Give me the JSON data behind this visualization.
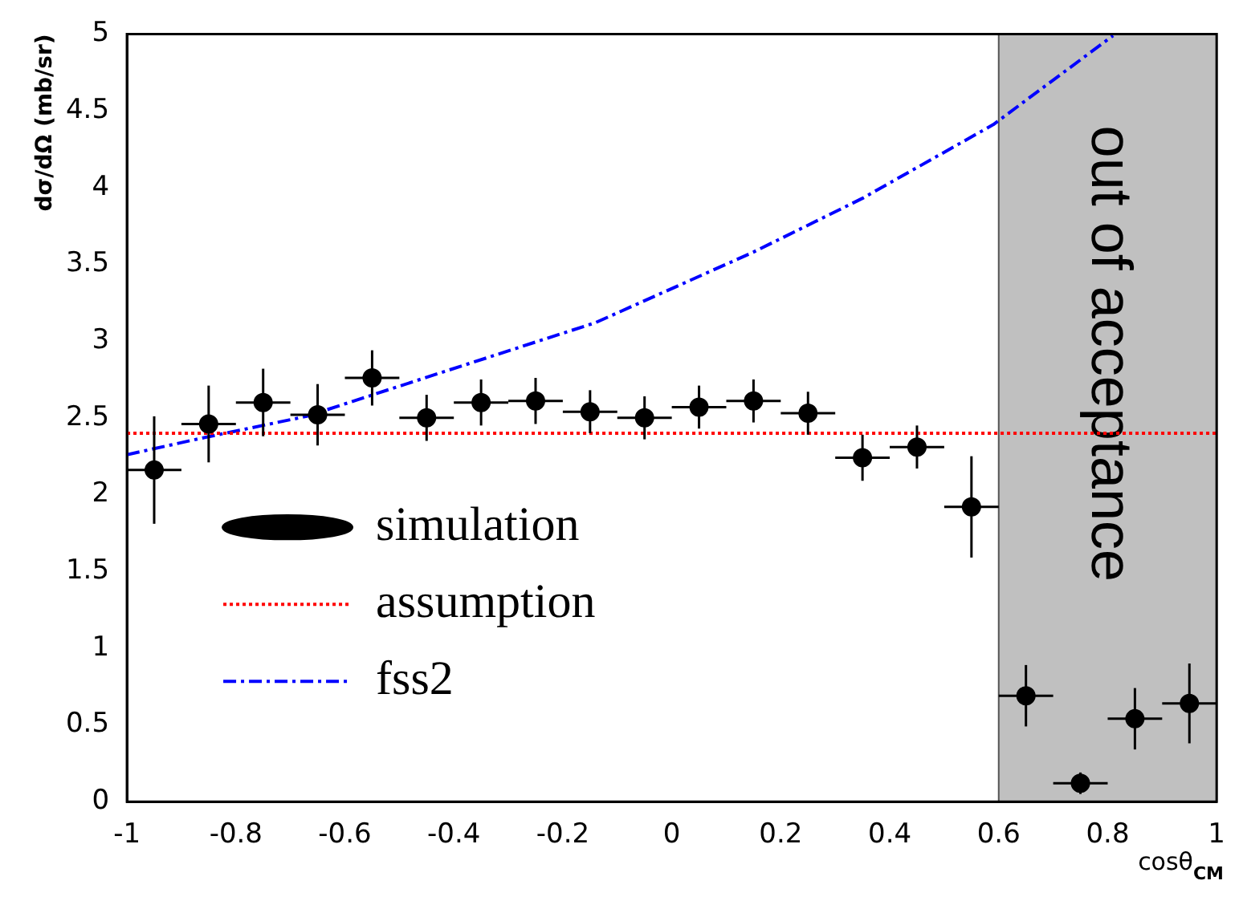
{
  "chart_data": {
    "type": "scatter",
    "xlabel": "cosθ$_{CM}$",
    "ylabel": "dσ/dΩ (mb/sr)",
    "xlim": [
      -1,
      1
    ],
    "xticks": [
      -1,
      -0.8,
      -0.6,
      -0.4,
      -0.2,
      0,
      0.2,
      0.4,
      0.6,
      0.8,
      1
    ],
    "ylim": [
      0,
      5
    ],
    "yticks": [
      0,
      0.5,
      1,
      1.5,
      2,
      2.5,
      3,
      3.5,
      4,
      4.5,
      5
    ],
    "grid": false,
    "legend": "bottom left",
    "bands": [
      {
        "axis": "x",
        "from": 0.6,
        "to": 1,
        "label": "out of acceptance",
        "color": "#c0c0c0"
      }
    ],
    "series": [
      {
        "name": "simulation",
        "type": "scatter",
        "marker": "circle",
        "color": "#000000",
        "x": [
          -0.95,
          -0.85,
          -0.75,
          -0.65,
          -0.55,
          -0.45,
          -0.35,
          -0.25,
          -0.15,
          -0.05,
          0.05,
          0.15,
          0.25,
          0.35,
          0.45,
          0.55,
          0.65,
          0.75,
          0.85,
          0.95
        ],
        "values": [
          2.16,
          2.46,
          2.6,
          2.52,
          2.76,
          2.5,
          2.6,
          2.61,
          2.54,
          2.5,
          2.57,
          2.61,
          2.53,
          2.24,
          2.31,
          1.92,
          0.69,
          0.12,
          0.54,
          0.64
        ],
        "errors": [
          0.35,
          0.25,
          0.22,
          0.2,
          0.18,
          0.15,
          0.15,
          0.15,
          0.14,
          0.14,
          0.14,
          0.14,
          0.14,
          0.15,
          0.14,
          0.33,
          0.2,
          0.07,
          0.2,
          0.26
        ],
        "xerrors": [
          0.05,
          0.05,
          0.05,
          0.05,
          0.05,
          0.05,
          0.05,
          0.05,
          0.05,
          0.05,
          0.05,
          0.05,
          0.05,
          0.05,
          0.05,
          0.05,
          0.05,
          0.05,
          0.05,
          0.05
        ]
      },
      {
        "name": "assumption",
        "type": "line",
        "line_style": "dotted",
        "marker": "none",
        "color": "#ff0000",
        "x": [
          -1,
          1
        ],
        "values": [
          2.4,
          2.4
        ]
      },
      {
        "name": "fss2",
        "type": "line",
        "line_style": "dashed",
        "marker": "none",
        "color": "#0000ff",
        "x": [
          -1,
          -0.86,
          -0.67,
          -0.41,
          -0.14,
          0.15,
          0.35,
          0.59,
          0.81
        ],
        "values": [
          2.26,
          2.37,
          2.51,
          2.81,
          3.12,
          3.58,
          3.93,
          4.41,
          4.99
        ]
      }
    ]
  }
}
